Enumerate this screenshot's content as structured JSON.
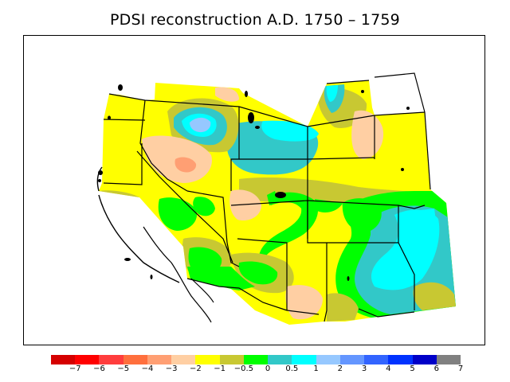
{
  "title": "PDSI reconstruction A.D. 1750 – 1759",
  "legend": {
    "colors": [
      "#d50000",
      "#ff0000",
      "#ff3d3d",
      "#ff6f3d",
      "#ff9f73",
      "#ffcfa3",
      "#ffff00",
      "#c8c832",
      "#00ff00",
      "#32c8c8",
      "#00ffff",
      "#96c8ff",
      "#6496ff",
      "#3264ff",
      "#0032ff",
      "#0000c8",
      "#808080"
    ],
    "ticks": [
      "−7",
      "−6",
      "−5",
      "−4",
      "−3",
      "−2",
      "−1",
      "−0.5",
      "0",
      "0.5",
      "1",
      "2",
      "3",
      "4",
      "5",
      "6",
      "7"
    ]
  }
}
